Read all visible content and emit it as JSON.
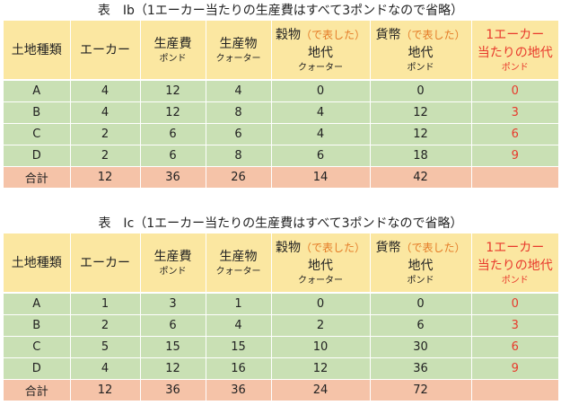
{
  "tables": [
    {
      "caption": "表　Ⅰb（1エーカー当たりの生産費はすべて3ポンドなので省略）",
      "rows": [
        {
          "land": "A",
          "acre": "4",
          "cost": "12",
          "product": "4",
          "grain_rent": "0",
          "money_rent": "0",
          "rent_per_acre": "0"
        },
        {
          "land": "B",
          "acre": "4",
          "cost": "12",
          "product": "8",
          "grain_rent": "4",
          "money_rent": "12",
          "rent_per_acre": "3"
        },
        {
          "land": "C",
          "acre": "2",
          "cost": "6",
          "product": "6",
          "grain_rent": "4",
          "money_rent": "12",
          "rent_per_acre": "6"
        },
        {
          "land": "D",
          "acre": "2",
          "cost": "6",
          "product": "8",
          "grain_rent": "6",
          "money_rent": "18",
          "rent_per_acre": "9"
        }
      ],
      "total": {
        "label": "合計",
        "acre": "12",
        "cost": "36",
        "product": "26",
        "grain_rent": "14",
        "money_rent": "42",
        "rent_per_acre": ""
      }
    },
    {
      "caption": "表　Ⅰc（1エーカー当たりの生産費はすべて3ポンドなので省略）",
      "rows": [
        {
          "land": "A",
          "acre": "1",
          "cost": "3",
          "product": "1",
          "grain_rent": "0",
          "money_rent": "0",
          "rent_per_acre": "0"
        },
        {
          "land": "B",
          "acre": "2",
          "cost": "6",
          "product": "4",
          "grain_rent": "2",
          "money_rent": "6",
          "rent_per_acre": "3"
        },
        {
          "land": "C",
          "acre": "5",
          "cost": "15",
          "product": "15",
          "grain_rent": "10",
          "money_rent": "30",
          "rent_per_acre": "6"
        },
        {
          "land": "D",
          "acre": "4",
          "cost": "12",
          "product": "16",
          "grain_rent": "12",
          "money_rent": "36",
          "rent_per_acre": "9"
        }
      ],
      "total": {
        "label": "合計",
        "acre": "12",
        "cost": "36",
        "product": "36",
        "grain_rent": "24",
        "money_rent": "72",
        "rent_per_acre": ""
      }
    }
  ],
  "headers": {
    "land_type": "土地種類",
    "acre": "エーカー",
    "cost": "生産費",
    "cost_unit": "ポンド",
    "product": "生産物",
    "product_unit": "クォーター",
    "grain": "穀物",
    "grain_note": "（で表した）",
    "grain_rent": "地代",
    "grain_unit": "クォーター",
    "money": "貨幣",
    "money_note": "（で表した）",
    "money_rent": "地代",
    "money_unit": "ポンド",
    "per_acre_1": "1エーカー",
    "per_acre_2": "当たりの地代",
    "per_acre_unit": "ポンド"
  },
  "colors": {
    "header_bg": "#fbe7a1",
    "data_bg": "#c9e0b4",
    "total_bg": "#f5c3a8",
    "red": "#e8392c",
    "orange": "#e47b26"
  }
}
